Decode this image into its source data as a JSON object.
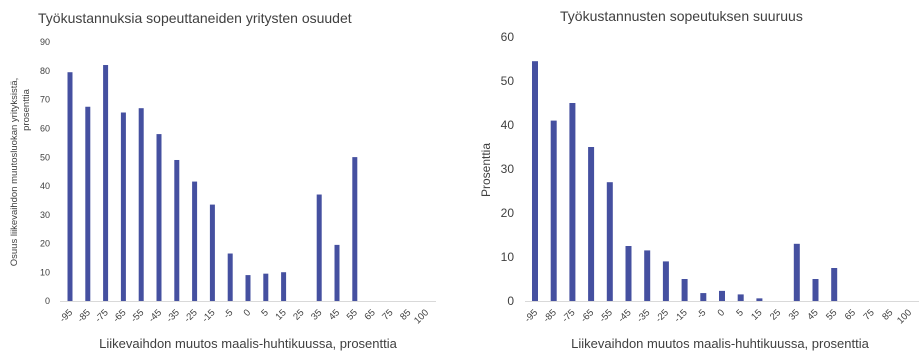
{
  "charts": [
    {
      "title": "Työkustannuksia  sopeuttaneiden  yritysten  osuudet",
      "xlabel": "Liikevaihdon  muutos maalis-huhtikuussa, prosenttia",
      "ylabel_line1": "Osuus liikevaihdon muutosluokan yrityksistä,",
      "ylabel_line2": "prosenttia"
    },
    {
      "title": "Työkustannusten  sopeutuksen  suuruus",
      "xlabel": "Liikevaihdon  muutos maalis-huhtikuussa, prosenttia",
      "ylabel": "Prosenttia"
    }
  ],
  "chart_data": [
    {
      "type": "bar",
      "title": "Työkustannuksia  sopeuttaneiden  yritysten  osuudet",
      "xlabel": "Liikevaihdon  muutos maalis-huhtikuussa, prosenttia",
      "ylabel": "Osuus liikevaihdon muutosluokan yrityksistä, prosenttia",
      "categories": [
        "-95",
        "-85",
        "-75",
        "-65",
        "-55",
        "-45",
        "-35",
        "-25",
        "-15",
        "-5",
        "0",
        "5",
        "15",
        "25",
        "35",
        "45",
        "55",
        "65",
        "75",
        "85",
        "100"
      ],
      "values": [
        79.5,
        67.5,
        82,
        65.5,
        67,
        58,
        49,
        41.5,
        33.5,
        16.5,
        9,
        9.5,
        10,
        null,
        37,
        19.5,
        50,
        null,
        null,
        null,
        null
      ],
      "ylim": [
        0,
        90
      ],
      "yticks": [
        0,
        10,
        20,
        30,
        40,
        50,
        60,
        70,
        80,
        90
      ],
      "grid": false,
      "color": "#4550A0"
    },
    {
      "type": "bar",
      "title": "Työkustannusten  sopeutuksen  suuruus",
      "xlabel": "Liikevaihdon  muutos maalis-huhtikuussa, prosenttia",
      "ylabel": "Prosenttia",
      "categories": [
        "-95",
        "-85",
        "-75",
        "-65",
        "-55",
        "-45",
        "-35",
        "-25",
        "-15",
        "-5",
        "0",
        "5",
        "15",
        "25",
        "35",
        "45",
        "55",
        "65",
        "75",
        "85",
        "100"
      ],
      "values": [
        54.5,
        41,
        45,
        35,
        27,
        12.5,
        11.5,
        9,
        5,
        1.8,
        2.3,
        1.5,
        0.6,
        null,
        13,
        5,
        7.5,
        null,
        null,
        null,
        null
      ],
      "ylim": [
        0,
        60
      ],
      "yticks": [
        0,
        10,
        20,
        30,
        40,
        50,
        60
      ],
      "grid": false,
      "color": "#4550A0"
    }
  ]
}
